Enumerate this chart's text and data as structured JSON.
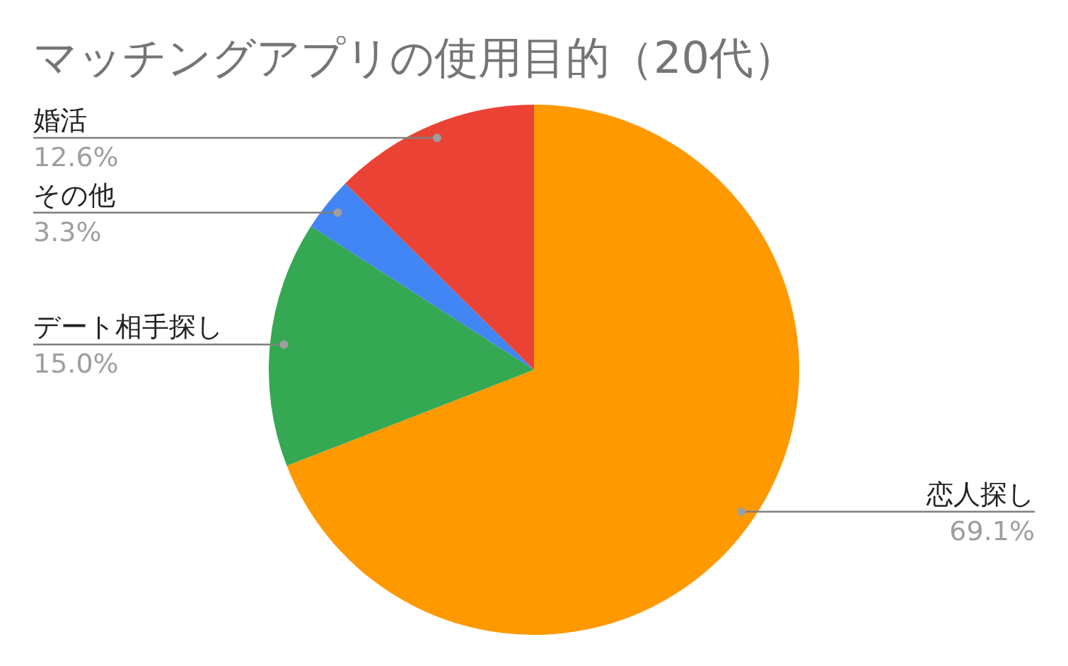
{
  "chart_data": {
    "type": "pie",
    "title": "マッチングアプリの使用目的（20代）",
    "categories": [
      "恋人探し",
      "デート相手探し",
      "その他",
      "婚活"
    ],
    "values": [
      69.1,
      15.0,
      3.3,
      12.6
    ],
    "colors": [
      "#ff9900",
      "#34a853",
      "#4285f4",
      "#ea4335"
    ],
    "value_labels": [
      "69.1%",
      "15.0%",
      "3.3%",
      "12.6%"
    ]
  }
}
